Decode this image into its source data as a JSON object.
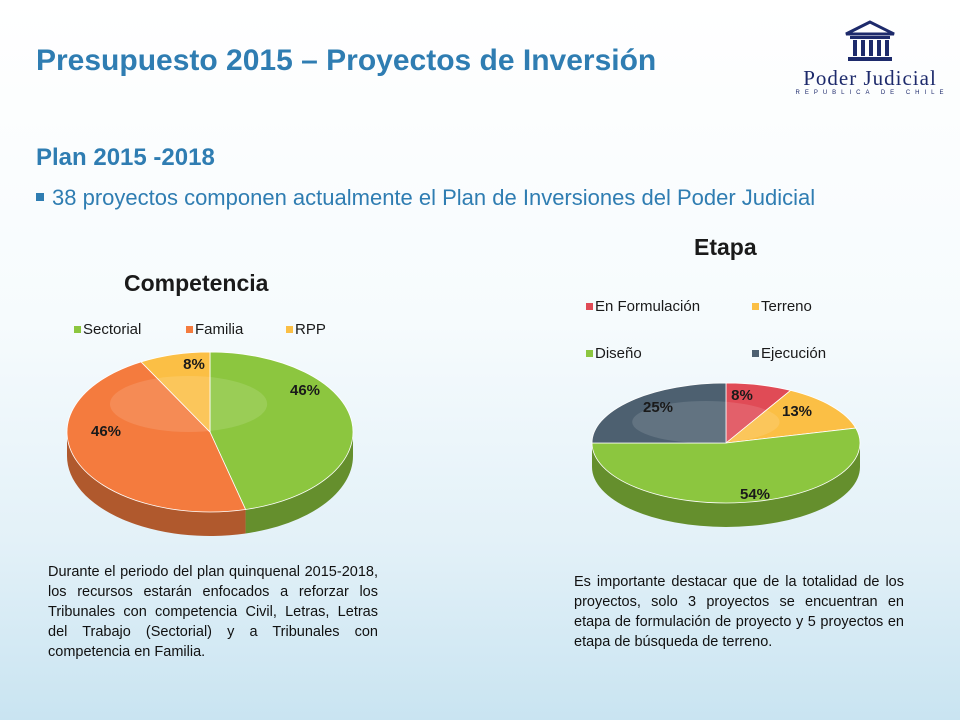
{
  "slide": {
    "title": "Presupuesto 2015 – Proyectos de Inversión",
    "subtitle": "Plan 2015 -2018",
    "bullet": "38 proyectos componen actualmente el Plan de Inversiones del Poder Judicial"
  },
  "logo": {
    "name": "Poder Judicial",
    "sub": "REPUBLICA DE CHILE",
    "icon": "courthouse-icon",
    "color": "#1d2a6b"
  },
  "chart_data": [
    {
      "type": "pie",
      "title": "Competencia",
      "categories": [
        "Sectorial",
        "Familia",
        "RPP"
      ],
      "values": [
        46,
        46,
        8
      ],
      "labels": [
        "46%",
        "46%",
        "8%"
      ],
      "colors": [
        "#8cc63f",
        "#f47b3e",
        "#fbbf45"
      ],
      "legend": "top"
    },
    {
      "type": "pie",
      "title": "Etapa",
      "categories": [
        "En Formulación",
        "Terreno",
        "Diseño",
        "Ejecución"
      ],
      "values": [
        8,
        13,
        54,
        25
      ],
      "labels": [
        "8%",
        "13%",
        "54%",
        "25%"
      ],
      "colors": [
        "#e04b56",
        "#fbbf45",
        "#8cc63f",
        "#4d6070"
      ],
      "legend": "top"
    }
  ],
  "notes": {
    "left": "Durante el periodo del plan quinquenal 2015-2018, los recursos estarán enfocados a reforzar los Tribunales con competencia Civil, Letras, Letras del Trabajo (Sectorial) y a Tribunales con competencia en Familia.",
    "right": "Es importante destacar que de la totalidad de los proyectos, solo 3 proyectos se encuentran en etapa de formulación de proyecto y 5 proyectos en etapa de búsqueda de terreno."
  }
}
